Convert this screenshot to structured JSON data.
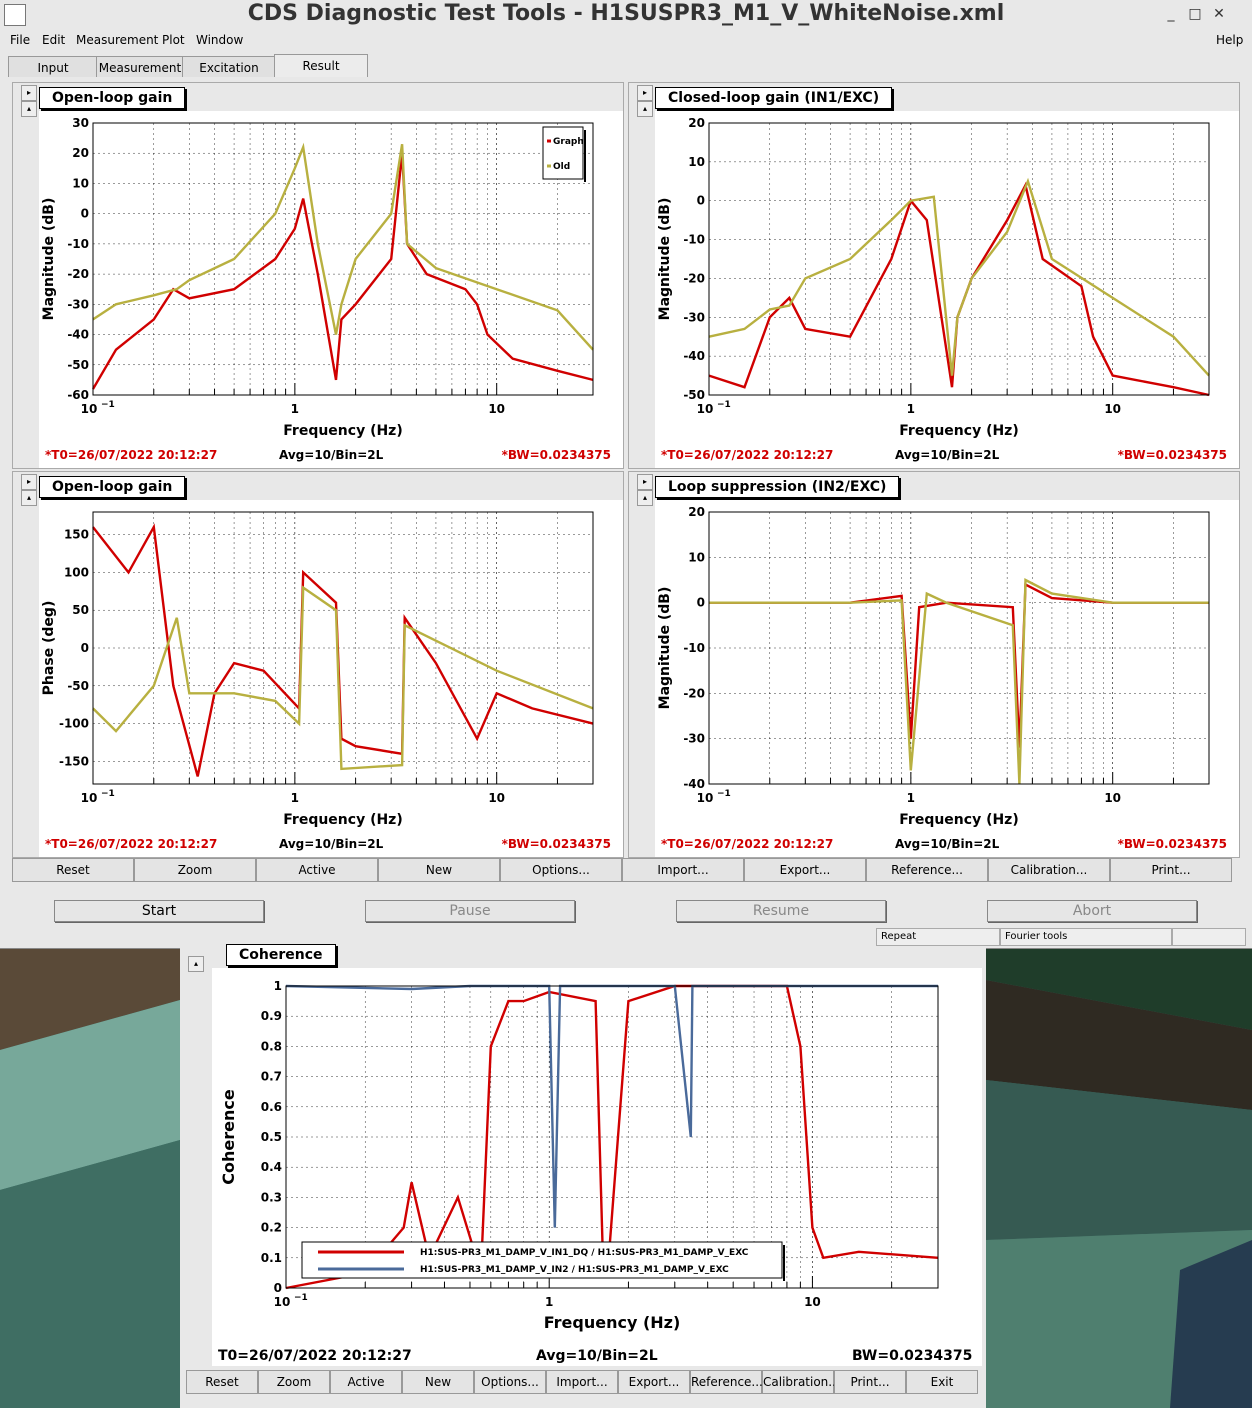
{
  "window": {
    "title": "CDS Diagnostic Test Tools - H1SUSPR3_M1_V_WhiteNoise.xml",
    "controls": [
      "_",
      "□",
      "✕"
    ]
  },
  "menu": {
    "file": "File",
    "edit": "Edit",
    "measurement": "Measurement",
    "plot": "Plot",
    "window": "Window",
    "help": "Help"
  },
  "tabs": [
    "Input",
    "Measurement",
    "Excitation",
    "Result"
  ],
  "panels": {
    "p1": {
      "title": "Open-loop gain",
      "ylabel": "Magnitude (dB)",
      "xlabel": "Frequency (Hz)",
      "yticks": [
        "30",
        "20",
        "10",
        "0",
        "-10",
        "-20",
        "-30",
        "-40",
        "-50",
        "-60"
      ],
      "legend": [
        "Graph",
        "Old"
      ]
    },
    "p2": {
      "title": "Closed-loop gain (IN1/EXC)",
      "ylabel": "Magnitude (dB)",
      "xlabel": "Frequency (Hz)",
      "yticks": [
        "20",
        "10",
        "0",
        "-10",
        "-20",
        "-30",
        "-40",
        "-50"
      ]
    },
    "p3": {
      "title": "Open-loop gain",
      "ylabel": "Phase (deg)",
      "xlabel": "Frequency (Hz)",
      "yticks": [
        "150",
        "100",
        "50",
        "0",
        "-50",
        "-100",
        "-150"
      ]
    },
    "p4": {
      "title": "Loop suppression (IN2/EXC)",
      "ylabel": "Magnitude (dB)",
      "xlabel": "Frequency (Hz)",
      "yticks": [
        "20",
        "10",
        "0",
        "-10",
        "-20",
        "-30",
        "-40"
      ]
    },
    "coh": {
      "title": "Coherence",
      "ylabel": "Coherence",
      "xlabel": "Frequency (Hz)",
      "yticks": [
        "1",
        "0.9",
        "0.8",
        "0.7",
        "0.6",
        "0.5",
        "0.4",
        "0.3",
        "0.2",
        "0.1",
        "0"
      ],
      "legend": [
        "H1:SUS-PR3_M1_DAMP_V_IN1_DQ / H1:SUS-PR3_M1_DAMP_V_EXC",
        "H1:SUS-PR3_M1_DAMP_V_IN2 / H1:SUS-PR3_M1_DAMP_V_EXC"
      ]
    }
  },
  "xticks": {
    "a": "10",
    "a_exp": "−1",
    "b": "1",
    "c": "10"
  },
  "footer": {
    "t0": "*T0=26/07/2022 20:12:27",
    "avg": "Avg=10/Bin=2L",
    "bw": "*BW=0.0234375"
  },
  "coh_footer": {
    "t0": "T0=26/07/2022 20:12:27",
    "avg": "Avg=10/Bin=2L",
    "bw": "BW=0.0234375"
  },
  "plot_buttons": [
    "Reset",
    "Zoom",
    "Active",
    "New",
    "Options...",
    "Import...",
    "Export...",
    "Reference...",
    "Calibration...",
    "Print..."
  ],
  "coh_buttons": [
    "Reset",
    "Zoom",
    "Active",
    "New",
    "Options...",
    "Import...",
    "Export...",
    "Reference...",
    "Calibration...",
    "Print...",
    "Exit"
  ],
  "run_buttons": {
    "start": "Start",
    "pause": "Pause",
    "resume": "Resume",
    "abort": "Abort"
  },
  "status": {
    "repeat": "Repeat",
    "fourier": "Fourier tools"
  },
  "colors": {
    "graph": "#d00000",
    "old": "#b8b040",
    "coh2": "#4a6a9a"
  },
  "chart_data": [
    {
      "type": "line",
      "title": "Open-loop gain",
      "xlabel": "Frequency (Hz)",
      "ylabel": "Magnitude (dB)",
      "xscale": "log",
      "xlim": [
        0.1,
        30
      ],
      "ylim": [
        -60,
        30
      ],
      "series": [
        {
          "name": "Graph",
          "x": [
            0.1,
            0.13,
            0.2,
            0.25,
            0.3,
            0.5,
            0.8,
            1.0,
            1.1,
            1.3,
            1.6,
            1.7,
            2.0,
            3.0,
            3.4,
            3.6,
            4.5,
            7,
            8,
            9,
            12,
            20,
            30
          ],
          "y": [
            -58,
            -45,
            -35,
            -25,
            -28,
            -25,
            -15,
            -5,
            5,
            -20,
            -55,
            -35,
            -30,
            -15,
            20,
            -10,
            -20,
            -25,
            -30,
            -40,
            -48,
            -52,
            -55
          ]
        },
        {
          "name": "Old",
          "x": [
            0.1,
            0.13,
            0.2,
            0.26,
            0.3,
            0.5,
            0.8,
            1.0,
            1.1,
            1.3,
            1.6,
            1.7,
            2.0,
            3.0,
            3.4,
            3.6,
            5,
            10,
            20,
            30
          ],
          "y": [
            -35,
            -30,
            -27,
            -25,
            -22,
            -15,
            0,
            15,
            22,
            -10,
            -40,
            -30,
            -15,
            0,
            23,
            -10,
            -18,
            -25,
            -32,
            -45
          ]
        }
      ]
    },
    {
      "type": "line",
      "title": "Closed-loop gain (IN1/EXC)",
      "xlabel": "Frequency (Hz)",
      "ylabel": "Magnitude (dB)",
      "xscale": "log",
      "xlim": [
        0.1,
        30
      ],
      "ylim": [
        -50,
        20
      ],
      "series": [
        {
          "name": "Graph",
          "x": [
            0.1,
            0.15,
            0.2,
            0.25,
            0.3,
            0.5,
            0.8,
            1.0,
            1.2,
            1.6,
            1.7,
            2,
            3,
            3.7,
            4.5,
            7,
            8,
            10,
            20,
            30
          ],
          "y": [
            -45,
            -48,
            -30,
            -25,
            -33,
            -35,
            -15,
            0,
            -5,
            -48,
            -30,
            -20,
            -5,
            4,
            -15,
            -22,
            -35,
            -45,
            -48,
            -50
          ]
        },
        {
          "name": "Old",
          "x": [
            0.1,
            0.15,
            0.2,
            0.25,
            0.3,
            0.5,
            0.8,
            1.0,
            1.3,
            1.6,
            1.7,
            2,
            3,
            3.8,
            5,
            10,
            20,
            30
          ],
          "y": [
            -35,
            -33,
            -28,
            -27,
            -20,
            -15,
            -5,
            0,
            1,
            -45,
            -30,
            -20,
            -8,
            5,
            -15,
            -25,
            -35,
            -45
          ]
        }
      ]
    },
    {
      "type": "line",
      "title": "Open-loop gain",
      "xlabel": "Frequency (Hz)",
      "ylabel": "Phase (deg)",
      "xscale": "log",
      "xlim": [
        0.1,
        30
      ],
      "ylim": [
        -180,
        180
      ],
      "series": [
        {
          "name": "Graph",
          "x": [
            0.1,
            0.15,
            0.2,
            0.25,
            0.33,
            0.4,
            0.5,
            0.7,
            1.05,
            1.1,
            1.6,
            1.7,
            2,
            3.4,
            3.5,
            5,
            8,
            10,
            15,
            30
          ],
          "y": [
            160,
            100,
            160,
            -50,
            -170,
            -60,
            -20,
            -30,
            -80,
            100,
            60,
            -120,
            -130,
            -140,
            40,
            -20,
            -120,
            -60,
            -80,
            -100
          ]
        },
        {
          "name": "Old",
          "x": [
            0.1,
            0.13,
            0.2,
            0.26,
            0.3,
            0.5,
            0.8,
            1.05,
            1.1,
            1.6,
            1.7,
            3.4,
            3.5,
            10,
            30
          ],
          "y": [
            -80,
            -110,
            -50,
            40,
            -60,
            -60,
            -70,
            -100,
            80,
            50,
            -160,
            -155,
            30,
            -30,
            -80
          ]
        }
      ]
    },
    {
      "type": "line",
      "title": "Loop suppression (IN2/EXC)",
      "xlabel": "Frequency (Hz)",
      "ylabel": "Magnitude (dB)",
      "xscale": "log",
      "xlim": [
        0.1,
        30
      ],
      "ylim": [
        -40,
        20
      ],
      "series": [
        {
          "name": "Graph",
          "x": [
            0.1,
            0.5,
            0.9,
            1.0,
            1.1,
            1.5,
            3.2,
            3.45,
            3.7,
            5,
            10,
            30
          ],
          "y": [
            0,
            0,
            1.5,
            -30,
            -1,
            0,
            -1,
            -32,
            4,
            1,
            0,
            0
          ]
        },
        {
          "name": "Old",
          "x": [
            0.1,
            0.5,
            0.9,
            1.0,
            1.2,
            1.5,
            3.2,
            3.45,
            3.7,
            5,
            10,
            30
          ],
          "y": [
            0,
            0,
            0.5,
            -37,
            2,
            0,
            -5,
            -40,
            5,
            2,
            0,
            0
          ]
        }
      ]
    },
    {
      "type": "line",
      "title": "Coherence",
      "xlabel": "Frequency (Hz)",
      "ylabel": "Coherence",
      "xscale": "log",
      "xlim": [
        0.1,
        30
      ],
      "ylim": [
        0,
        1
      ],
      "series": [
        {
          "name": "H1:SUS-PR3_M1_DAMP_V_IN1_DQ / H1:SUS-PR3_M1_DAMP_V_EXC",
          "x": [
            0.1,
            0.2,
            0.28,
            0.3,
            0.35,
            0.45,
            0.55,
            0.6,
            0.7,
            0.8,
            1.0,
            1.5,
            1.6,
            1.7,
            2,
            3,
            5,
            8,
            9,
            10,
            11,
            15,
            30
          ],
          "y": [
            0,
            0.05,
            0.2,
            0.35,
            0.1,
            0.3,
            0.05,
            0.8,
            0.95,
            0.95,
            0.98,
            0.95,
            0.1,
            0.15,
            0.95,
            1,
            1,
            1,
            0.8,
            0.2,
            0.1,
            0.12,
            0.1
          ]
        },
        {
          "name": "H1:SUS-PR3_M1_DAMP_V_IN2 / H1:SUS-PR3_M1_DAMP_V_EXC",
          "x": [
            0.1,
            0.3,
            0.5,
            1.0,
            1.05,
            1.1,
            1.2,
            3.0,
            3.45,
            3.5,
            3.6,
            10,
            30
          ],
          "y": [
            1,
            0.99,
            1,
            1,
            0.2,
            1,
            1,
            1,
            0.5,
            1,
            1,
            1,
            1
          ]
        }
      ]
    }
  ]
}
